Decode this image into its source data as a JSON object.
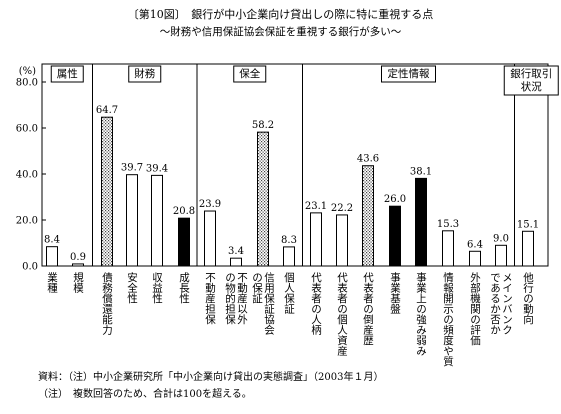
{
  "figure": {
    "title": "〔第10図〕　銀行が中小企業向け貸出しの際に特に重視する点",
    "subtitle": "〜財務や信用保証協会保証を重視する銀行が多い〜",
    "source": "資料：（注）中小企業研究所「中小企業向け貸出の実態調査」（2003年１月）",
    "note": "（注）　複数回答のため、合計は100を超える。"
  },
  "chart_data": {
    "type": "bar",
    "ylabel": "(%)",
    "ylim": [
      0,
      80
    ],
    "yticks": [
      "0.0",
      "20.0",
      "40.0",
      "60.0",
      "80.0"
    ],
    "grid": false,
    "groups": [
      {
        "label": "属性",
        "start": 0,
        "end": 1
      },
      {
        "label": "財務",
        "start": 2,
        "end": 5
      },
      {
        "label": "保全",
        "start": 6,
        "end": 9
      },
      {
        "label": "定性情報",
        "start": 10,
        "end": 17
      },
      {
        "label": "銀行取引状況",
        "start": 18,
        "end": 19
      }
    ],
    "categories": [
      "業種",
      "規模",
      "債務償還能力",
      "安全性",
      "収益性",
      "成長性",
      "不動産担保",
      "不動産以外の物的担保",
      "信用保証協会の保証",
      "個人保証",
      "代表者の人柄",
      "代表者の個人資産",
      "代表者の倒産歴",
      "事業基盤",
      "事業上の強み弱み",
      "情報開示の頻度や質",
      "外部機関の評価",
      "メインバンクであるか否か",
      "他行の動向"
    ],
    "values": [
      8.4,
      0.9,
      64.7,
      39.7,
      39.4,
      20.8,
      23.9,
      3.4,
      58.2,
      8.3,
      23.1,
      22.2,
      43.6,
      26.0,
      38.1,
      15.3,
      6.4,
      9.0,
      15.1
    ],
    "value_labels": [
      "8.4",
      "0.9",
      "64.7",
      "39.7",
      "39.4",
      "20.8",
      "23.9",
      "3.4",
      "58.2",
      "8.3",
      "23.1",
      "22.2",
      "43.6",
      "26.0",
      "38.1",
      "15.3",
      "6.4",
      "9.0",
      "15.1"
    ],
    "styles": [
      "white",
      "white",
      "dotted",
      "white",
      "white",
      "black",
      "white",
      "white",
      "dotted",
      "white",
      "white",
      "white",
      "dotted",
      "black",
      "black",
      "white",
      "white",
      "white",
      "white"
    ]
  }
}
